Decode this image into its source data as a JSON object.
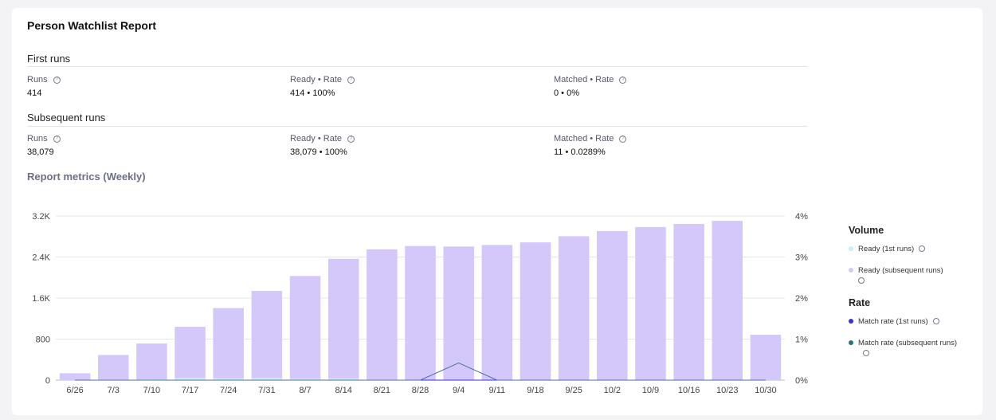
{
  "title": "Person Watchlist Report",
  "first_runs": {
    "heading": "First runs",
    "runs": {
      "label": "Runs",
      "value": "414"
    },
    "ready": {
      "label": "Ready • Rate",
      "value": "414 • 100%"
    },
    "matched": {
      "label": "Matched • Rate",
      "value": "0 • 0%"
    }
  },
  "subsequent_runs": {
    "heading": "Subsequent runs",
    "runs": {
      "label": "Runs",
      "value": "38,079"
    },
    "ready": {
      "label": "Ready • Rate",
      "value": "38,079 • 100%"
    },
    "matched": {
      "label": "Matched • Rate",
      "value": "11 • 0.0289%"
    }
  },
  "metrics_title": "Report metrics (Weekly)",
  "legend": {
    "volume_heading": "Volume",
    "rate_heading": "Rate",
    "items": [
      {
        "label": "Ready (1st runs)",
        "color": "#c9f0f8"
      },
      {
        "label": "Ready (subsequent runs)",
        "color": "#d4c8fb"
      },
      {
        "label": "Match rate (1st runs)",
        "color": "#3b2fd6"
      },
      {
        "label": "Match rate (subsequent runs)",
        "color": "#2a7378"
      }
    ]
  },
  "chart_data": {
    "type": "bar",
    "categories": [
      "6/26",
      "7/3",
      "7/10",
      "7/17",
      "7/24",
      "7/31",
      "8/7",
      "8/14",
      "8/21",
      "8/28",
      "9/4",
      "9/11",
      "9/18",
      "9/25",
      "10/2",
      "10/9",
      "10/16",
      "10/23",
      "10/30"
    ],
    "series": [
      {
        "name": "Ready (1st runs)",
        "axis": "left",
        "values": [
          5,
          10,
          15,
          40,
          35,
          40,
          30,
          35,
          10,
          5,
          5,
          5,
          5,
          5,
          5,
          5,
          5,
          5,
          5
        ]
      },
      {
        "name": "Ready (subsequent runs)",
        "axis": "left",
        "values": [
          130,
          480,
          700,
          1000,
          1370,
          1700,
          2000,
          2330,
          2540,
          2610,
          2600,
          2630,
          2680,
          2800,
          2900,
          2980,
          3040,
          3100,
          880
        ]
      },
      {
        "name": "Match rate (1st runs)",
        "axis": "right",
        "type": "line",
        "values": [
          0,
          0,
          0,
          0,
          0,
          0,
          0,
          0,
          0,
          0,
          0,
          0,
          0,
          0,
          0,
          0,
          0,
          0,
          0
        ]
      },
      {
        "name": "Match rate (subsequent runs)",
        "axis": "right",
        "type": "line",
        "values": [
          0,
          0,
          0,
          0,
          0,
          0,
          0,
          0,
          0,
          0,
          0.42,
          0,
          0,
          0,
          0,
          0,
          0,
          0,
          0
        ]
      }
    ],
    "y_left": {
      "ticks": [
        "0",
        "800",
        "1.6K",
        "2.4K",
        "3.2K"
      ],
      "tick_values": [
        0,
        800,
        1600,
        2400,
        3200
      ],
      "range": [
        0,
        3200
      ]
    },
    "y_right": {
      "ticks": [
        "0%",
        "1%",
        "2%",
        "3%",
        "4%"
      ],
      "tick_values": [
        0,
        1,
        2,
        3,
        4
      ],
      "range": [
        0,
        4
      ]
    }
  }
}
